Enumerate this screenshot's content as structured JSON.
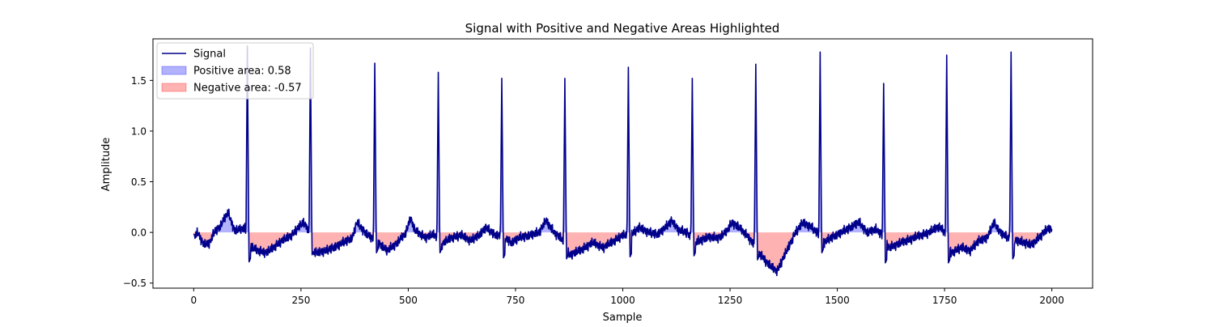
{
  "chart_data": {
    "type": "line",
    "title": "Signal with Positive and Negative Areas Highlighted",
    "xlabel": "Sample",
    "ylabel": "Amplitude",
    "xlim": [
      -95,
      2095
    ],
    "ylim": [
      -0.55,
      1.91
    ],
    "xticks": [
      0,
      250,
      500,
      750,
      1000,
      1250,
      1500,
      1750,
      2000
    ],
    "yticks": [
      -0.5,
      0.0,
      0.5,
      1.0,
      1.5
    ],
    "xtick_labels": [
      "0",
      "250",
      "500",
      "750",
      "1000",
      "1250",
      "1500",
      "1750",
      "2000"
    ],
    "ytick_labels": [
      "−0.5",
      "0.0",
      "0.5",
      "1.0",
      "1.5"
    ],
    "legend": {
      "position": "top-left",
      "entries": [
        {
          "label": "Signal",
          "kind": "line",
          "color": "#00008b"
        },
        {
          "label": "Positive area: 0.58",
          "kind": "patch",
          "color": "#0000ff"
        },
        {
          "label": "Negative area: -0.57",
          "kind": "patch",
          "color": "#ff0000"
        }
      ]
    },
    "beats": [
      {
        "x": 125,
        "peak": 1.84,
        "trough": -0.29
      },
      {
        "x": 272,
        "peak": 1.82,
        "trough": -0.22
      },
      {
        "x": 422,
        "peak": 1.67,
        "trough": -0.2
      },
      {
        "x": 570,
        "peak": 1.58,
        "trough": -0.2
      },
      {
        "x": 718,
        "peak": 1.52,
        "trough": -0.25
      },
      {
        "x": 865,
        "peak": 1.52,
        "trough": -0.26
      },
      {
        "x": 1013,
        "peak": 1.63,
        "trough": -0.24
      },
      {
        "x": 1162,
        "peak": 1.52,
        "trough": -0.23
      },
      {
        "x": 1310,
        "peak": 1.66,
        "trough": -0.27
      },
      {
        "x": 1460,
        "peak": 1.78,
        "trough": -0.2
      },
      {
        "x": 1608,
        "peak": 1.47,
        "trough": -0.3
      },
      {
        "x": 1755,
        "peak": 1.75,
        "trough": -0.3
      },
      {
        "x": 1905,
        "peak": 1.78,
        "trough": -0.26
      }
    ],
    "baseline_points": [
      [
        0,
        -0.05
      ],
      [
        10,
        0.0
      ],
      [
        20,
        -0.1
      ],
      [
        35,
        -0.12
      ],
      [
        50,
        0.02
      ],
      [
        60,
        0.05
      ],
      [
        80,
        0.2
      ],
      [
        95,
        0.02
      ],
      [
        110,
        0.03
      ],
      [
        118,
        0.05
      ],
      [
        135,
        -0.15
      ],
      [
        150,
        -0.18
      ],
      [
        170,
        -0.2
      ],
      [
        200,
        -0.1
      ],
      [
        230,
        -0.02
      ],
      [
        255,
        0.1
      ],
      [
        265,
        0.05
      ],
      [
        280,
        -0.2
      ],
      [
        310,
        -0.18
      ],
      [
        340,
        -0.12
      ],
      [
        370,
        -0.05
      ],
      [
        380,
        0.1
      ],
      [
        395,
        0.02
      ],
      [
        410,
        -0.04
      ],
      [
        430,
        -0.1
      ],
      [
        450,
        -0.18
      ],
      [
        475,
        -0.1
      ],
      [
        495,
        0.0
      ],
      [
        505,
        0.15
      ],
      [
        515,
        0.02
      ],
      [
        540,
        -0.05
      ],
      [
        560,
        -0.02
      ],
      [
        578,
        -0.12
      ],
      [
        600,
        -0.05
      ],
      [
        625,
        -0.03
      ],
      [
        645,
        -0.08
      ],
      [
        665,
        -0.03
      ],
      [
        680,
        0.05
      ],
      [
        700,
        -0.02
      ],
      [
        712,
        -0.03
      ],
      [
        725,
        -0.05
      ],
      [
        740,
        -0.1
      ],
      [
        760,
        -0.05
      ],
      [
        790,
        -0.02
      ],
      [
        805,
        0.0
      ],
      [
        820,
        0.12
      ],
      [
        840,
        0.0
      ],
      [
        855,
        -0.05
      ],
      [
        875,
        -0.22
      ],
      [
        900,
        -0.18
      ],
      [
        930,
        -0.1
      ],
      [
        955,
        -0.15
      ],
      [
        980,
        -0.08
      ],
      [
        1000,
        -0.03
      ],
      [
        1020,
        -0.02
      ],
      [
        1040,
        0.05
      ],
      [
        1060,
        0.0
      ],
      [
        1080,
        -0.02
      ],
      [
        1100,
        0.05
      ],
      [
        1115,
        0.12
      ],
      [
        1130,
        0.02
      ],
      [
        1150,
        0.0
      ],
      [
        1170,
        -0.1
      ],
      [
        1195,
        -0.05
      ],
      [
        1225,
        -0.05
      ],
      [
        1240,
        0.0
      ],
      [
        1255,
        0.1
      ],
      [
        1270,
        0.05
      ],
      [
        1290,
        -0.03
      ],
      [
        1302,
        -0.1
      ],
      [
        1318,
        -0.2
      ],
      [
        1340,
        -0.32
      ],
      [
        1360,
        -0.38
      ],
      [
        1380,
        -0.2
      ],
      [
        1400,
        -0.02
      ],
      [
        1420,
        0.1
      ],
      [
        1440,
        0.05
      ],
      [
        1452,
        0.0
      ],
      [
        1470,
        -0.1
      ],
      [
        1490,
        -0.04
      ],
      [
        1510,
        0.0
      ],
      [
        1530,
        0.05
      ],
      [
        1550,
        0.1
      ],
      [
        1570,
        0.0
      ],
      [
        1590,
        0.03
      ],
      [
        1600,
        0.0
      ],
      [
        1620,
        -0.15
      ],
      [
        1650,
        -0.1
      ],
      [
        1680,
        -0.05
      ],
      [
        1700,
        -0.02
      ],
      [
        1715,
        0.0
      ],
      [
        1735,
        0.06
      ],
      [
        1748,
        0.02
      ],
      [
        1765,
        -0.2
      ],
      [
        1790,
        -0.15
      ],
      [
        1810,
        -0.18
      ],
      [
        1830,
        -0.08
      ],
      [
        1850,
        -0.05
      ],
      [
        1865,
        0.1
      ],
      [
        1880,
        0.0
      ],
      [
        1895,
        -0.05
      ],
      [
        1915,
        -0.08
      ],
      [
        1935,
        -0.1
      ],
      [
        1955,
        -0.12
      ],
      [
        1970,
        -0.05
      ],
      [
        1985,
        0.02
      ],
      [
        2000,
        0.04
      ]
    ]
  }
}
